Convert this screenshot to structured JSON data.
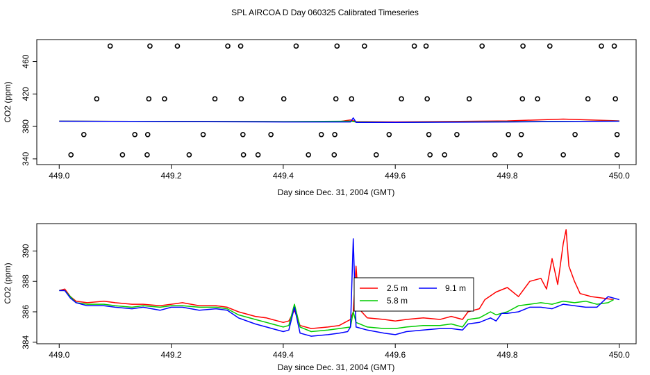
{
  "title": "SPL AIRCOA D  Day 060325  Calibrated Timeseries",
  "chart_data": [
    {
      "type": "scatter",
      "title": "SPL AIRCOA D  Day 060325  Calibrated Timeseries",
      "xlabel": "Day since Dec. 31, 2004 (GMT)",
      "ylabel": "CO2 (ppm)",
      "xlim": [
        448.96,
        450.03
      ],
      "ylim": [
        333,
        487
      ],
      "xticks": [
        449.0,
        449.2,
        449.4,
        449.6,
        449.8,
        450.0
      ],
      "xtick_labels": [
        "449.0",
        "449.2",
        "449.4",
        "449.6",
        "449.8",
        "450.0"
      ],
      "yticks": [
        340,
        380,
        420,
        460
      ],
      "ytick_labels": [
        "340",
        "380",
        "420",
        "460"
      ],
      "calibration_points": [
        {
          "x": 449.091,
          "y": 479
        },
        {
          "x": 449.162,
          "y": 479
        },
        {
          "x": 449.211,
          "y": 479
        },
        {
          "x": 449.301,
          "y": 479
        },
        {
          "x": 449.324,
          "y": 479
        },
        {
          "x": 449.423,
          "y": 479
        },
        {
          "x": 449.496,
          "y": 479
        },
        {
          "x": 449.545,
          "y": 479
        },
        {
          "x": 449.634,
          "y": 479
        },
        {
          "x": 449.655,
          "y": 479
        },
        {
          "x": 449.755,
          "y": 479
        },
        {
          "x": 449.828,
          "y": 479
        },
        {
          "x": 449.876,
          "y": 479
        },
        {
          "x": 449.968,
          "y": 479
        },
        {
          "x": 449.991,
          "y": 479
        },
        {
          "x": 449.067,
          "y": 414
        },
        {
          "x": 449.16,
          "y": 414
        },
        {
          "x": 449.188,
          "y": 414
        },
        {
          "x": 449.278,
          "y": 414
        },
        {
          "x": 449.325,
          "y": 414
        },
        {
          "x": 449.401,
          "y": 414
        },
        {
          "x": 449.494,
          "y": 414
        },
        {
          "x": 449.522,
          "y": 414
        },
        {
          "x": 449.611,
          "y": 414
        },
        {
          "x": 449.657,
          "y": 414
        },
        {
          "x": 449.732,
          "y": 414
        },
        {
          "x": 449.827,
          "y": 414
        },
        {
          "x": 449.854,
          "y": 414
        },
        {
          "x": 449.944,
          "y": 414
        },
        {
          "x": 449.993,
          "y": 414
        },
        {
          "x": 449.044,
          "y": 370
        },
        {
          "x": 449.135,
          "y": 370
        },
        {
          "x": 449.158,
          "y": 370
        },
        {
          "x": 449.257,
          "y": 370
        },
        {
          "x": 449.328,
          "y": 370
        },
        {
          "x": 449.378,
          "y": 370
        },
        {
          "x": 449.468,
          "y": 370
        },
        {
          "x": 449.492,
          "y": 370
        },
        {
          "x": 449.589,
          "y": 370
        },
        {
          "x": 449.66,
          "y": 370
        },
        {
          "x": 449.71,
          "y": 370
        },
        {
          "x": 449.802,
          "y": 370
        },
        {
          "x": 449.825,
          "y": 370
        },
        {
          "x": 449.921,
          "y": 370
        },
        {
          "x": 449.996,
          "y": 370
        },
        {
          "x": 449.021,
          "y": 345
        },
        {
          "x": 449.113,
          "y": 345
        },
        {
          "x": 449.157,
          "y": 345
        },
        {
          "x": 449.232,
          "y": 345
        },
        {
          "x": 449.329,
          "y": 345
        },
        {
          "x": 449.355,
          "y": 345
        },
        {
          "x": 449.445,
          "y": 345
        },
        {
          "x": 449.491,
          "y": 345
        },
        {
          "x": 449.566,
          "y": 345
        },
        {
          "x": 449.662,
          "y": 345
        },
        {
          "x": 449.688,
          "y": 345
        },
        {
          "x": 449.778,
          "y": 345
        },
        {
          "x": 449.823,
          "y": 345
        },
        {
          "x": 449.9,
          "y": 345
        },
        {
          "x": 449.996,
          "y": 345
        }
      ],
      "baseline_series": [
        {
          "name": "2.5 m",
          "color": "#ff0000",
          "x": [
            449.0,
            449.4,
            449.5,
            449.52,
            449.53,
            449.6,
            449.8,
            449.9,
            450.0
          ],
          "y": [
            386.5,
            386.0,
            386.0,
            388.0,
            386.0,
            385.5,
            386.8,
            389.0,
            386.8
          ]
        },
        {
          "name": "5.8 m",
          "color": "#00cc00",
          "x": [
            449.0,
            449.4,
            449.52,
            449.53,
            449.6,
            449.8,
            450.0
          ],
          "y": [
            386.5,
            386.0,
            386.5,
            385.5,
            385.0,
            386.0,
            386.5
          ]
        },
        {
          "name": "9.1 m",
          "color": "#0000ff",
          "x": [
            449.0,
            449.4,
            449.52,
            449.525,
            449.53,
            449.6,
            449.8,
            450.0
          ],
          "y": [
            386.5,
            385.5,
            385.5,
            390.5,
            385.0,
            385.0,
            385.5,
            386.5
          ]
        }
      ]
    },
    {
      "type": "line",
      "xlabel": "Day since Dec. 31, 2004 (GMT)",
      "ylabel": "CO2 (ppm)",
      "xlim": [
        448.96,
        450.03
      ],
      "ylim": [
        383.9,
        391.8
      ],
      "xticks": [
        449.0,
        449.2,
        449.4,
        449.6,
        449.8,
        450.0
      ],
      "xtick_labels": [
        "449.0",
        "449.2",
        "449.4",
        "449.6",
        "449.8",
        "450.0"
      ],
      "yticks": [
        384,
        386,
        388,
        390
      ],
      "ytick_labels": [
        "384",
        "386",
        "388",
        "390"
      ],
      "legend": {
        "position": "center",
        "entries": [
          {
            "name": "2.5 m",
            "color": "#ff0000"
          },
          {
            "name": "5.8 m",
            "color": "#00cc00"
          },
          {
            "name": "9.1 m",
            "color": "#0000ff"
          }
        ]
      },
      "series": [
        {
          "name": "2.5 m",
          "color": "#ff0000",
          "x": [
            449.0,
            449.01,
            449.02,
            449.03,
            449.05,
            449.08,
            449.1,
            449.13,
            449.15,
            449.18,
            449.2,
            449.22,
            449.25,
            449.28,
            449.3,
            449.32,
            449.35,
            449.37,
            449.38,
            449.4,
            449.41,
            449.42,
            449.43,
            449.45,
            449.48,
            449.5,
            449.51,
            449.52,
            449.525,
            449.53,
            449.535,
            449.54,
            449.55,
            449.58,
            449.6,
            449.62,
            449.65,
            449.68,
            449.7,
            449.72,
            449.73,
            449.75,
            449.76,
            449.78,
            449.8,
            449.82,
            449.84,
            449.86,
            449.87,
            449.88,
            449.89,
            449.9,
            449.905,
            449.91,
            449.92,
            449.93,
            449.95,
            449.97,
            449.99
          ],
          "y": [
            387.4,
            387.5,
            387.0,
            386.7,
            386.6,
            386.7,
            386.6,
            386.5,
            386.5,
            386.4,
            386.5,
            386.6,
            386.4,
            386.4,
            386.3,
            386.0,
            385.7,
            385.6,
            385.5,
            385.3,
            385.4,
            386.1,
            385.1,
            384.9,
            385.0,
            385.1,
            385.3,
            385.5,
            386.0,
            389.0,
            386.3,
            386.0,
            385.6,
            385.5,
            385.4,
            385.5,
            385.6,
            385.5,
            385.7,
            385.5,
            386.0,
            386.2,
            386.8,
            387.3,
            387.6,
            387.0,
            388.0,
            388.2,
            387.5,
            389.5,
            387.8,
            390.5,
            391.4,
            389.0,
            388.0,
            387.2,
            387.0,
            386.9,
            386.8
          ]
        },
        {
          "name": "5.8 m",
          "color": "#00cc00",
          "x": [
            449.0,
            449.01,
            449.02,
            449.03,
            449.05,
            449.08,
            449.1,
            449.13,
            449.15,
            449.18,
            449.2,
            449.22,
            449.25,
            449.28,
            449.3,
            449.32,
            449.35,
            449.37,
            449.38,
            449.4,
            449.41,
            449.42,
            449.43,
            449.45,
            449.48,
            449.5,
            449.52,
            449.525,
            449.53,
            449.55,
            449.58,
            449.6,
            449.62,
            449.65,
            449.68,
            449.7,
            449.72,
            449.73,
            449.75,
            449.77,
            449.78,
            449.8,
            449.82,
            449.84,
            449.86,
            449.88,
            449.9,
            449.92,
            449.94,
            449.96,
            449.98,
            449.99
          ],
          "y": [
            387.4,
            387.4,
            387.0,
            386.6,
            386.5,
            386.5,
            386.4,
            386.3,
            386.4,
            386.3,
            386.4,
            386.4,
            386.3,
            386.3,
            386.2,
            385.8,
            385.5,
            385.3,
            385.2,
            385.0,
            385.1,
            386.5,
            385.0,
            384.7,
            384.8,
            384.9,
            385.0,
            386.0,
            385.3,
            385.0,
            384.9,
            384.9,
            385.0,
            385.1,
            385.1,
            385.2,
            385.0,
            385.5,
            385.6,
            386.0,
            385.8,
            386.0,
            386.4,
            386.5,
            386.6,
            386.5,
            386.7,
            386.6,
            386.7,
            386.5,
            386.6,
            386.8
          ]
        },
        {
          "name": "9.1 m",
          "color": "#0000ff",
          "x": [
            449.0,
            449.01,
            449.02,
            449.03,
            449.05,
            449.08,
            449.1,
            449.13,
            449.15,
            449.18,
            449.2,
            449.22,
            449.25,
            449.28,
            449.3,
            449.32,
            449.35,
            449.37,
            449.38,
            449.4,
            449.41,
            449.42,
            449.43,
            449.45,
            449.48,
            449.5,
            449.515,
            449.52,
            449.525,
            449.53,
            449.55,
            449.58,
            449.6,
            449.62,
            449.65,
            449.68,
            449.7,
            449.72,
            449.73,
            449.75,
            449.77,
            449.78,
            449.79,
            449.8,
            449.82,
            449.84,
            449.86,
            449.88,
            449.9,
            449.92,
            449.94,
            449.96,
            449.98,
            450.0
          ],
          "y": [
            387.4,
            387.4,
            386.9,
            386.6,
            386.4,
            386.4,
            386.3,
            386.2,
            386.3,
            386.1,
            386.3,
            386.3,
            386.1,
            386.2,
            386.1,
            385.6,
            385.2,
            385.0,
            384.9,
            384.7,
            384.8,
            386.3,
            384.6,
            384.4,
            384.5,
            384.6,
            384.7,
            385.0,
            390.8,
            385.0,
            384.8,
            384.6,
            384.5,
            384.7,
            384.8,
            384.9,
            384.9,
            384.8,
            385.2,
            385.3,
            385.6,
            385.4,
            385.9,
            385.9,
            386.0,
            386.3,
            386.3,
            386.2,
            386.5,
            386.4,
            386.3,
            386.3,
            387.0,
            386.8
          ]
        }
      ]
    }
  ]
}
